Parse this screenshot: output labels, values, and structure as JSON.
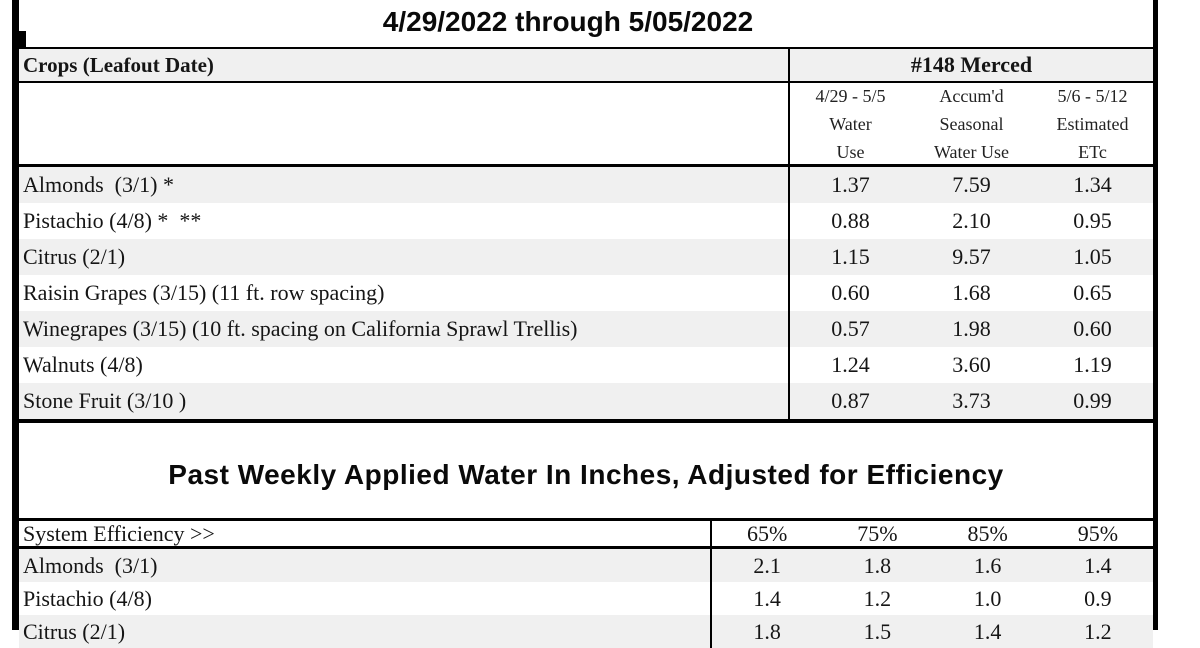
{
  "page": {
    "date_range_title": "4/29/2022 through 5/05/2022",
    "section2_title": "Past Weekly Applied Water In Inches, Adjusted for Efficiency"
  },
  "colors": {
    "row_shade": "#f0f0f0",
    "border": "#000000",
    "text": "#151515"
  },
  "water_use_table": {
    "crops_header": "Crops (Leafout Date)",
    "station_header": "#148 Merced",
    "columns": [
      {
        "line1": "4/29 - 5/5",
        "line2": "Water",
        "line3": "Use"
      },
      {
        "line1": "Accum'd",
        "line2": "Seasonal",
        "line3": "Water Use"
      },
      {
        "line1": "5/6 - 5/12",
        "line2": "Estimated",
        "line3": "ETc"
      }
    ],
    "rows": [
      {
        "crop": "Almonds  (3/1) *",
        "values": [
          "1.37",
          "7.59",
          "1.34"
        ]
      },
      {
        "crop": "Pistachio (4/8) *  **",
        "values": [
          "0.88",
          "2.10",
          "0.95"
        ]
      },
      {
        "crop": "Citrus (2/1)",
        "values": [
          "1.15",
          "9.57",
          "1.05"
        ]
      },
      {
        "crop": "Raisin Grapes (3/15) (11 ft. row spacing)",
        "values": [
          "0.60",
          "1.68",
          "0.65"
        ]
      },
      {
        "crop": "Winegrapes (3/15) (10 ft. spacing on California Sprawl Trellis)",
        "values": [
          "0.57",
          "1.98",
          "0.60"
        ]
      },
      {
        "crop": "Walnuts (4/8)",
        "values": [
          "1.24",
          "3.60",
          "1.19"
        ]
      },
      {
        "crop": "Stone Fruit (3/10 )",
        "values": [
          "0.87",
          "3.73",
          "0.99"
        ]
      }
    ]
  },
  "applied_water_table": {
    "header_label": "System Efficiency >>",
    "efficiencies": [
      "65%",
      "75%",
      "85%",
      "95%"
    ],
    "rows": [
      {
        "crop": "Almonds  (3/1)",
        "values": [
          "2.1",
          "1.8",
          "1.6",
          "1.4"
        ]
      },
      {
        "crop": "Pistachio (4/8)",
        "values": [
          "1.4",
          "1.2",
          "1.0",
          "0.9"
        ]
      },
      {
        "crop": "Citrus (2/1)",
        "values": [
          "1.8",
          "1.5",
          "1.4",
          "1.2"
        ]
      }
    ]
  }
}
